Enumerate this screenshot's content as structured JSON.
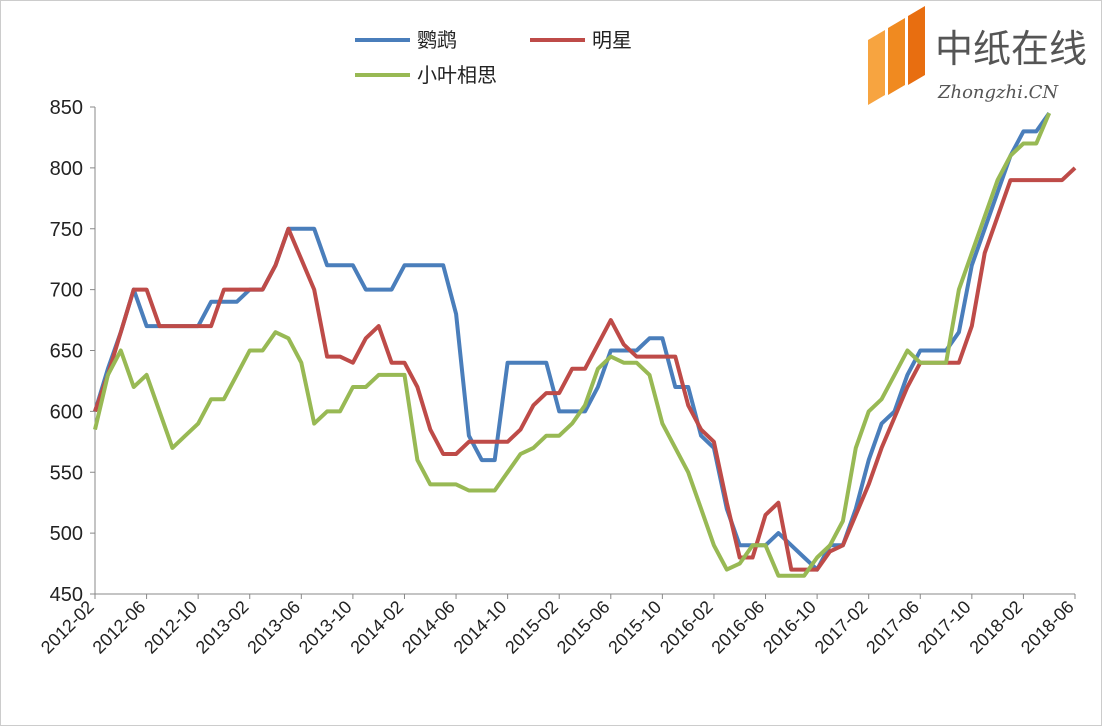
{
  "chart_data": {
    "type": "line",
    "categories": [
      "2012-02",
      null,
      null,
      null,
      "2012-06",
      null,
      null,
      null,
      "2012-10",
      null,
      null,
      null,
      "2013-02",
      null,
      null,
      null,
      "2013-06",
      null,
      null,
      null,
      "2013-10",
      null,
      null,
      null,
      "2014-02",
      null,
      null,
      null,
      "2014-06",
      null,
      null,
      null,
      "2014-10",
      null,
      null,
      null,
      "2015-02",
      null,
      null,
      null,
      "2015-06",
      null,
      null,
      null,
      "2015-10",
      null,
      null,
      null,
      "2016-02",
      null,
      null,
      null,
      "2016-06",
      null,
      null,
      null,
      "2016-10",
      null,
      null,
      null,
      "2017-02",
      null,
      null,
      null,
      "2017-06",
      null,
      null,
      null,
      "2017-10",
      null,
      null,
      null,
      "2018-02",
      null,
      null,
      null,
      "2018-06"
    ],
    "series": [
      {
        "name": "鹦鹉",
        "color": "#4a7ebb",
        "values": [
          600,
          635,
          665,
          700,
          670,
          670,
          670,
          670,
          670,
          690,
          690,
          690,
          700,
          700,
          720,
          750,
          750,
          750,
          720,
          720,
          720,
          700,
          700,
          700,
          720,
          720,
          720,
          720,
          680,
          580,
          560,
          560,
          640,
          640,
          640,
          640,
          600,
          600,
          600,
          620,
          650,
          650,
          650,
          660,
          660,
          620,
          620,
          580,
          570,
          520,
          490,
          490,
          490,
          500,
          490,
          480,
          470,
          490,
          490,
          520,
          560,
          590,
          600,
          630,
          650,
          650,
          650,
          665,
          720,
          750,
          780,
          810,
          830,
          830,
          845,
          null,
          null
        ]
      },
      {
        "name": "明星",
        "color": "#be4b48",
        "values": [
          600,
          630,
          665,
          700,
          700,
          670,
          670,
          670,
          670,
          670,
          700,
          700,
          700,
          700,
          720,
          750,
          725,
          700,
          645,
          645,
          640,
          660,
          670,
          640,
          640,
          620,
          585,
          565,
          565,
          575,
          575,
          575,
          575,
          585,
          605,
          615,
          615,
          635,
          635,
          655,
          675,
          655,
          645,
          645,
          645,
          645,
          605,
          585,
          575,
          525,
          480,
          480,
          515,
          525,
          470,
          470,
          470,
          485,
          490,
          515,
          540,
          570,
          595,
          620,
          640,
          640,
          640,
          640,
          670,
          730,
          760,
          790,
          790,
          790,
          790,
          790,
          800
        ]
      },
      {
        "name": "小叶相思",
        "color": "#98b954",
        "values": [
          585,
          630,
          650,
          620,
          630,
          600,
          570,
          580,
          590,
          610,
          610,
          630,
          650,
          650,
          665,
          660,
          640,
          590,
          600,
          600,
          620,
          620,
          630,
          630,
          630,
          560,
          540,
          540,
          540,
          535,
          535,
          535,
          550,
          565,
          570,
          580,
          580,
          590,
          605,
          635,
          645,
          640,
          640,
          630,
          590,
          570,
          550,
          520,
          490,
          470,
          475,
          490,
          490,
          465,
          465,
          465,
          480,
          490,
          510,
          570,
          600,
          610,
          630,
          650,
          640,
          640,
          640,
          700,
          730,
          760,
          790,
          810,
          820,
          820,
          845,
          null,
          null
        ]
      }
    ],
    "ylim": [
      450,
      850
    ],
    "yticks": [
      450,
      500,
      550,
      600,
      650,
      700,
      750,
      800,
      850
    ],
    "grid": false,
    "watermark": {
      "title": "中纸在线",
      "subtitle": "Zhongzhi.CN"
    }
  }
}
